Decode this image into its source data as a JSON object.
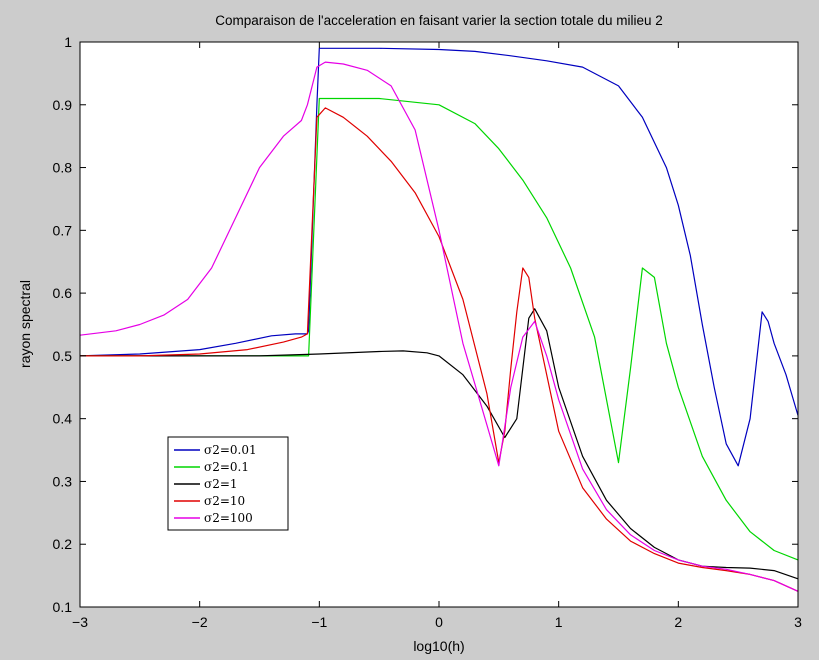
{
  "chart_data": {
    "type": "line",
    "title": "Comparaison de l'acceleration en faisant varier la section totale du milieu 2",
    "xlabel": "log10(h)",
    "ylabel": "rayon spectral",
    "xlim": [
      -3,
      3
    ],
    "ylim": [
      0.1,
      1
    ],
    "xticks": [
      -3,
      -2,
      -1,
      0,
      1,
      2,
      3
    ],
    "yticks": [
      0.1,
      0.2,
      0.3,
      0.4,
      0.5,
      0.6,
      0.7,
      0.8,
      0.9,
      1
    ],
    "xtick_labels": [
      "−3",
      "−2",
      "−1",
      "0",
      "1",
      "2",
      "3"
    ],
    "ytick_labels": [
      "0.1",
      "0.2",
      "0.3",
      "0.4",
      "0.5",
      "0.6",
      "0.7",
      "0.8",
      "0.9",
      "1"
    ],
    "grid": false,
    "legend_position": "lower-left",
    "series": [
      {
        "name": "σ2=0.01",
        "color": "#0000bf",
        "x": [
          -3,
          -2.5,
          -2,
          -1.7,
          -1.4,
          -1.2,
          -1.1,
          -1.09,
          -1.02,
          -1.0,
          -0.5,
          0,
          0.3,
          0.6,
          0.9,
          1.2,
          1.5,
          1.7,
          1.9,
          2.0,
          2.1,
          2.2,
          2.3,
          2.4,
          2.5,
          2.6,
          2.7,
          2.75,
          2.8,
          2.9,
          3.0
        ],
        "y": [
          0.5,
          0.503,
          0.51,
          0.52,
          0.532,
          0.535,
          0.535,
          0.54,
          0.9,
          0.99,
          0.99,
          0.988,
          0.985,
          0.978,
          0.97,
          0.96,
          0.93,
          0.88,
          0.8,
          0.74,
          0.66,
          0.55,
          0.45,
          0.36,
          0.325,
          0.4,
          0.57,
          0.555,
          0.52,
          0.47,
          0.405
        ]
      },
      {
        "name": "σ2=0.1",
        "color": "#00d600",
        "x": [
          -3,
          -2,
          -1.5,
          -1.2,
          -1.1,
          -1.09,
          -1.0,
          -0.5,
          0,
          0.3,
          0.5,
          0.7,
          0.9,
          1.1,
          1.3,
          1.5,
          1.6,
          1.7,
          1.8,
          1.9,
          2.0,
          2.2,
          2.4,
          2.6,
          2.8,
          3.0
        ],
        "y": [
          0.5,
          0.5,
          0.5,
          0.5,
          0.5,
          0.5,
          0.91,
          0.91,
          0.9,
          0.87,
          0.83,
          0.78,
          0.72,
          0.64,
          0.53,
          0.33,
          0.48,
          0.64,
          0.625,
          0.52,
          0.45,
          0.34,
          0.27,
          0.22,
          0.19,
          0.175
        ]
      },
      {
        "name": "σ2=1",
        "color": "#000000",
        "x": [
          -3,
          -2,
          -1.5,
          -1,
          -0.5,
          -0.3,
          -0.1,
          0,
          0.2,
          0.4,
          0.55,
          0.65,
          0.75,
          0.8,
          0.9,
          1.0,
          1.2,
          1.4,
          1.6,
          1.8,
          2.0,
          2.2,
          2.4,
          2.6,
          2.8,
          3.0
        ],
        "y": [
          0.5,
          0.5,
          0.5,
          0.503,
          0.507,
          0.508,
          0.505,
          0.5,
          0.47,
          0.42,
          0.37,
          0.4,
          0.56,
          0.575,
          0.54,
          0.45,
          0.34,
          0.27,
          0.225,
          0.195,
          0.175,
          0.165,
          0.163,
          0.162,
          0.158,
          0.145
        ]
      },
      {
        "name": "σ2=10",
        "color": "#e00000",
        "x": [
          -3,
          -2.5,
          -2,
          -1.6,
          -1.3,
          -1.15,
          -1.1,
          -1.02,
          -0.95,
          -0.8,
          -0.6,
          -0.4,
          -0.2,
          0,
          0.2,
          0.4,
          0.5,
          0.55,
          0.6,
          0.65,
          0.7,
          0.75,
          0.8,
          0.9,
          1.0,
          1.2,
          1.4,
          1.6,
          1.8,
          2.0,
          2.2,
          2.4,
          2.6,
          2.8,
          3.0
        ],
        "y": [
          0.5,
          0.5,
          0.503,
          0.51,
          0.522,
          0.53,
          0.535,
          0.88,
          0.895,
          0.88,
          0.85,
          0.81,
          0.76,
          0.69,
          0.59,
          0.44,
          0.33,
          0.38,
          0.48,
          0.57,
          0.64,
          0.625,
          0.56,
          0.47,
          0.38,
          0.29,
          0.24,
          0.205,
          0.185,
          0.17,
          0.163,
          0.158,
          0.152,
          0.142,
          0.125
        ]
      },
      {
        "name": "σ2=100",
        "color": "#e600e6",
        "x": [
          -3,
          -2.7,
          -2.5,
          -2.3,
          -2.1,
          -1.9,
          -1.7,
          -1.5,
          -1.3,
          -1.15,
          -1.1,
          -1.02,
          -0.95,
          -0.8,
          -0.6,
          -0.4,
          -0.2,
          0,
          0.2,
          0.4,
          0.5,
          0.6,
          0.7,
          0.8,
          0.9,
          1.0,
          1.2,
          1.4,
          1.6,
          1.8,
          2.0,
          2.2,
          2.4,
          2.6,
          2.8,
          3.0
        ],
        "y": [
          0.533,
          0.54,
          0.55,
          0.565,
          0.59,
          0.64,
          0.72,
          0.8,
          0.85,
          0.875,
          0.9,
          0.96,
          0.968,
          0.965,
          0.955,
          0.93,
          0.86,
          0.7,
          0.52,
          0.39,
          0.325,
          0.45,
          0.53,
          0.555,
          0.5,
          0.43,
          0.32,
          0.255,
          0.215,
          0.19,
          0.175,
          0.165,
          0.16,
          0.152,
          0.142,
          0.125
        ]
      }
    ]
  }
}
